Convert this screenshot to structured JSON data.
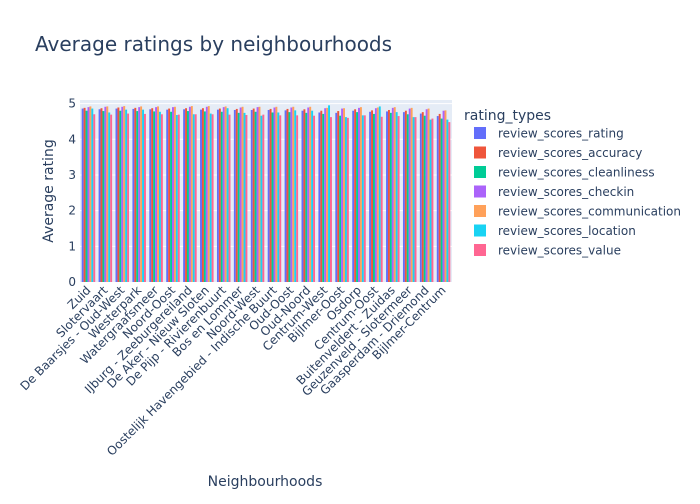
{
  "chart_data": {
    "type": "bar",
    "title": "Average ratings by neighbourhoods",
    "xlabel": "Neighbourhoods",
    "ylabel": "Average rating",
    "ylim": [
      0,
      5.1
    ],
    "yticks": [
      0,
      1,
      2,
      3,
      4,
      5
    ],
    "grid": true,
    "legend_title": "rating_types",
    "legend_position": "right",
    "categories": [
      "Zuid",
      "Slotervaart",
      "De Baarsjes - Oud-West",
      "Westerpark",
      "Watergraafsmeer",
      "Noord-Oost",
      "IJburg - Zeeburgereiland",
      "De Aker - Nieuw Sloten",
      "De Pijp - Rivierenbuurt",
      "Bos en Lommer",
      "Noord-West",
      "Oostelijk Havengebied - Indische Buurt",
      "Oud-Oost",
      "Oud-Noord",
      "Centrum-West",
      "Bijlmer-Oost",
      "Osdorp",
      "Centrum-Oost",
      "Buitenveldert - Zuidas",
      "Geuzenveld - Slotermeer",
      "Gaasperdam - Driemond",
      "Bijlmer-Centrum"
    ],
    "series": [
      {
        "name": "review_scores_rating",
        "color": "#636efa",
        "values": [
          4.86,
          4.84,
          4.86,
          4.85,
          4.84,
          4.83,
          4.84,
          4.83,
          4.83,
          4.82,
          4.82,
          4.82,
          4.81,
          4.8,
          4.75,
          4.74,
          4.8,
          4.77,
          4.78,
          4.76,
          4.72,
          4.65
        ]
      },
      {
        "name": "review_scores_accuracy",
        "color": "#ef553b",
        "values": [
          4.88,
          4.87,
          4.89,
          4.88,
          4.87,
          4.86,
          4.87,
          4.87,
          4.86,
          4.85,
          4.86,
          4.85,
          4.85,
          4.84,
          4.8,
          4.79,
          4.84,
          4.81,
          4.82,
          4.8,
          4.76,
          4.71
        ]
      },
      {
        "name": "review_scores_cleanliness",
        "color": "#00cc96",
        "values": [
          4.8,
          4.79,
          4.8,
          4.79,
          4.78,
          4.77,
          4.79,
          4.78,
          4.77,
          4.74,
          4.77,
          4.75,
          4.76,
          4.74,
          4.71,
          4.66,
          4.76,
          4.71,
          4.74,
          4.7,
          4.66,
          4.58
        ]
      },
      {
        "name": "review_scores_checkin",
        "color": "#ab63fa",
        "values": [
          4.9,
          4.91,
          4.91,
          4.9,
          4.9,
          4.9,
          4.91,
          4.91,
          4.9,
          4.89,
          4.9,
          4.89,
          4.89,
          4.89,
          4.87,
          4.86,
          4.88,
          4.87,
          4.88,
          4.86,
          4.84,
          4.8
        ]
      },
      {
        "name": "review_scores_communication",
        "color": "#ffa15a",
        "values": [
          4.92,
          4.92,
          4.93,
          4.92,
          4.92,
          4.91,
          4.93,
          4.93,
          4.92,
          4.91,
          4.91,
          4.91,
          4.91,
          4.91,
          4.88,
          4.87,
          4.9,
          4.89,
          4.9,
          4.88,
          4.86,
          4.81
        ]
      },
      {
        "name": "review_scores_location",
        "color": "#19d3f3",
        "values": [
          4.86,
          4.75,
          4.83,
          4.83,
          4.77,
          4.68,
          4.7,
          4.72,
          4.87,
          4.74,
          4.66,
          4.75,
          4.81,
          4.8,
          4.95,
          4.62,
          4.67,
          4.92,
          4.76,
          4.62,
          4.55,
          4.55
        ]
      },
      {
        "name": "review_scores_value",
        "color": "#ff6692",
        "values": [
          4.7,
          4.69,
          4.72,
          4.71,
          4.7,
          4.69,
          4.7,
          4.7,
          4.69,
          4.68,
          4.69,
          4.67,
          4.67,
          4.66,
          4.62,
          4.6,
          4.67,
          4.63,
          4.65,
          4.62,
          4.58,
          4.48
        ]
      }
    ]
  }
}
